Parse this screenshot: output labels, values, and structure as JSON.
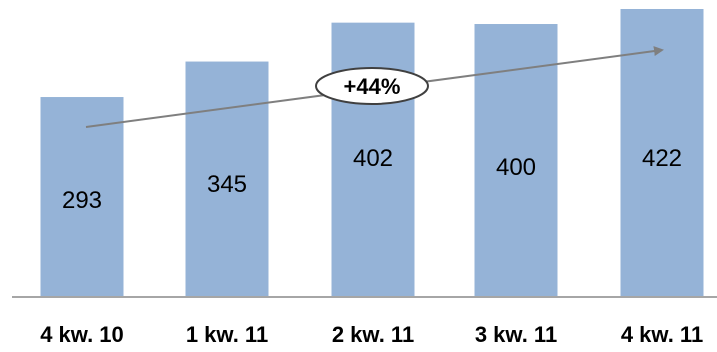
{
  "chart_data": {
    "type": "bar",
    "categories": [
      "4 kw. 10",
      "1 kw. 11",
      "2 kw. 11",
      "3 kw. 11",
      "4 kw. 11"
    ],
    "values": [
      293,
      345,
      402,
      400,
      422
    ],
    "title": "",
    "xlabel": "",
    "ylabel": "",
    "ylim": [
      0,
      422
    ],
    "grid": false,
    "legend": "none",
    "annotations": [
      {
        "text": "+44%",
        "type": "trend-arrow",
        "from_category": "4 kw. 10",
        "to_category": "4 kw. 11"
      }
    ],
    "colors": {
      "bar": "#95b3d7",
      "axis": "#a6a6a6",
      "arrow": "#7f7f7f",
      "text": "#000000"
    }
  }
}
